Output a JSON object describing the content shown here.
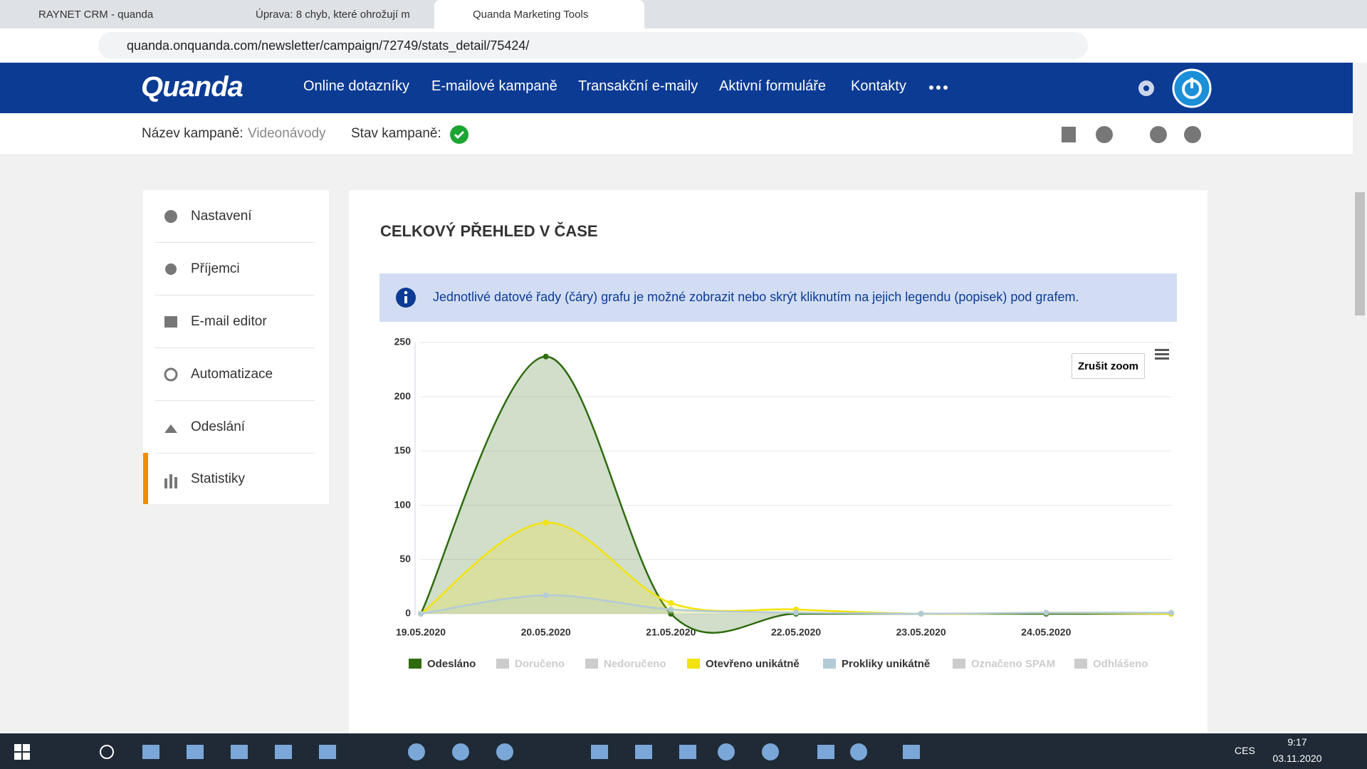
{
  "browser": {
    "tabs": [
      "RAYNET CRM - quanda",
      "Úprava: 8 chyb, které ohrožují m",
      "Quanda Marketing Tools"
    ],
    "url": "quanda.onquanda.com/newsletter/campaign/72749/stats_detail/75424/"
  },
  "nav": {
    "logo": "Quanda",
    "items": [
      "Online dotazníky",
      "E-mailové kampaně",
      "Transakční e-maily",
      "Aktivní formuláře",
      "Kontakty"
    ]
  },
  "campaign": {
    "name_label": "Název kampaně:",
    "name": "Videonávody",
    "state_label": "Stav kampaně:"
  },
  "sidebar": {
    "items": [
      "Nastavení",
      "Příjemci",
      "E-mail editor",
      "Automatizace",
      "Odeslání",
      "Statistiky"
    ]
  },
  "info": "Jednotlivé datové řady (čáry) grafu je možné zobrazit nebo skrýt kliknutím na jejich legendu (popisek) pod grafem.",
  "zoom_button": "Zrušit zoom",
  "chart_data": {
    "type": "area",
    "title": "CELKOVÝ PŘEHLED V ČASE",
    "categories": [
      "19.05.2020",
      "20.05.2020",
      "21.05.2020",
      "22.05.2020",
      "23.05.2020",
      "24.05.2020",
      null
    ],
    "series": [
      {
        "name": "Odesláno",
        "color": "#2e6b0e",
        "visible": true,
        "values": [
          0,
          237,
          0,
          0,
          0,
          0,
          0
        ]
      },
      {
        "name": "Doručeno",
        "color": "#cccccc",
        "visible": false
      },
      {
        "name": "Nedoručeno",
        "color": "#cccccc",
        "visible": false
      },
      {
        "name": "Otevřeno unikátně",
        "color": "#f2e30c",
        "visible": true,
        "values": [
          0,
          84,
          10,
          4,
          0,
          1,
          0
        ]
      },
      {
        "name": "Prokliky unikátně",
        "color": "#b3cbd6",
        "visible": true,
        "values": [
          0,
          17,
          4,
          1,
          0,
          1,
          1
        ]
      },
      {
        "name": "Označeno SPAM",
        "color": "#cccccc",
        "visible": false
      },
      {
        "name": "Odhlášeno",
        "color": "#cccccc",
        "visible": false
      }
    ],
    "ylim": [
      0,
      250
    ],
    "yticks": [
      0,
      50,
      100,
      150,
      200,
      250
    ],
    "grid": true
  },
  "taskbar": {
    "lang": "CES",
    "time": "9:17",
    "date": "03.11.2020"
  }
}
